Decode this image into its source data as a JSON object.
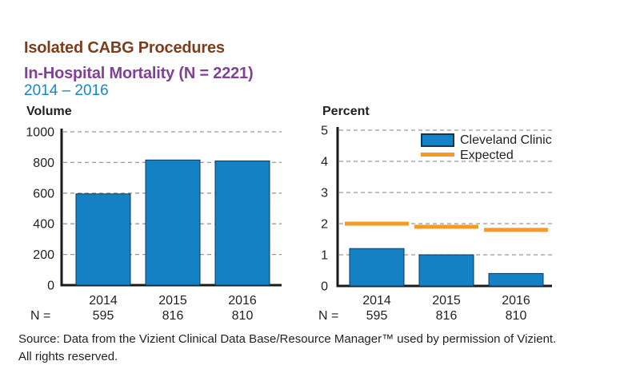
{
  "header": {
    "title": "Isolated CABG Procedures",
    "subtitle": "In-Hospital Mortality (N = 2221)",
    "period": "2014 – 2016"
  },
  "colors": {
    "title": "#7b3e1d",
    "subtitle": "#7f4295",
    "period": "#1786c8",
    "bar_fill": "#1581c5",
    "bar_border": "#0b3a5c",
    "expected": "#f59b23",
    "gridline": "#999999",
    "axis": "#1a1a1a",
    "text": "#231f20"
  },
  "chart_data": [
    {
      "type": "bar",
      "title": "Volume",
      "categories": [
        "2014",
        "2015",
        "2016"
      ],
      "values": [
        595,
        816,
        810
      ],
      "ylim": [
        0,
        1000
      ],
      "yticks": [
        0,
        200,
        400,
        600,
        800,
        1000
      ],
      "grid": "dashed-horizontal",
      "n_label": "N =",
      "n_values": [
        "595",
        "816",
        "810"
      ]
    },
    {
      "type": "bar",
      "title": "Percent",
      "categories": [
        "2014",
        "2015",
        "2016"
      ],
      "series": [
        {
          "name": "Cleveland Clinic",
          "mark": "bar",
          "values": [
            1.2,
            1.0,
            0.4
          ],
          "color": "#1581c5"
        },
        {
          "name": "Expected",
          "mark": "dash",
          "values": [
            2.0,
            1.9,
            1.8
          ],
          "color": "#f59b23"
        }
      ],
      "ylim": [
        0,
        5
      ],
      "yticks": [
        0,
        1,
        2,
        3,
        4,
        5
      ],
      "grid": "dashed-horizontal",
      "legend_position": "top-right",
      "n_label": "N =",
      "n_values": [
        "595",
        "816",
        "810"
      ]
    }
  ],
  "footer": {
    "line1": "Source: Data from the Vizient Clinical Data Base/Resource Manager™ used by permission of Vizient.",
    "line2": "All rights reserved."
  }
}
